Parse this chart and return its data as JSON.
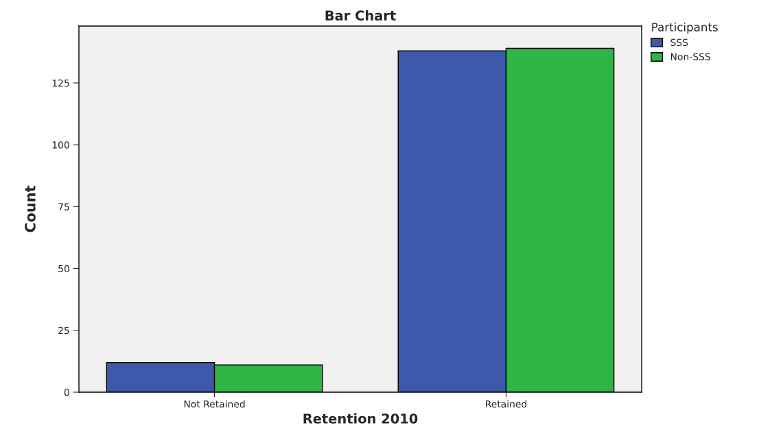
{
  "chart_data": {
    "type": "bar",
    "title": "Bar Chart",
    "xlabel": "Retention 2010",
    "ylabel": "Count",
    "categories": [
      "Not Retained",
      "Retained"
    ],
    "series": [
      {
        "name": "SSS",
        "color": "#3e58ac",
        "values": [
          12,
          138
        ]
      },
      {
        "name": "Non-SSS",
        "color": "#2db546",
        "values": [
          11,
          139
        ]
      }
    ],
    "legend_title": "Participants",
    "legend": "top right",
    "ylim": [
      0,
      148
    ],
    "yticks": [
      0,
      25,
      50,
      75,
      100,
      125
    ],
    "grid": false
  }
}
